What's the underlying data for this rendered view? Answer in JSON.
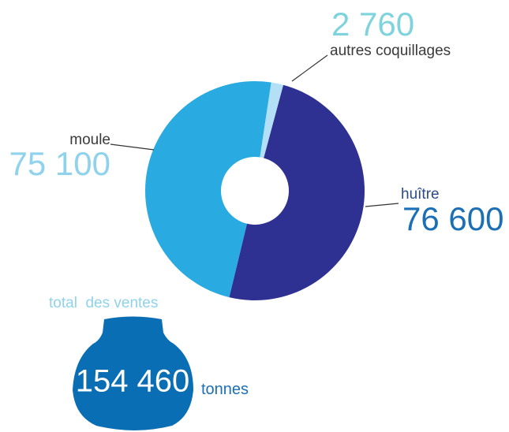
{
  "chart_data": {
    "type": "pie",
    "categories": [
      "huître",
      "moule",
      "autres coquillages"
    ],
    "values": [
      76600,
      75100,
      2760
    ],
    "value_labels": [
      "76 600",
      "75 100",
      "2 760"
    ],
    "colors": [
      "#2e3192",
      "#29abe2",
      "#b3e0f7"
    ],
    "total": {
      "title": "total  des ventes",
      "value": 154460,
      "label": "154 460",
      "unit": "tonnes"
    }
  }
}
